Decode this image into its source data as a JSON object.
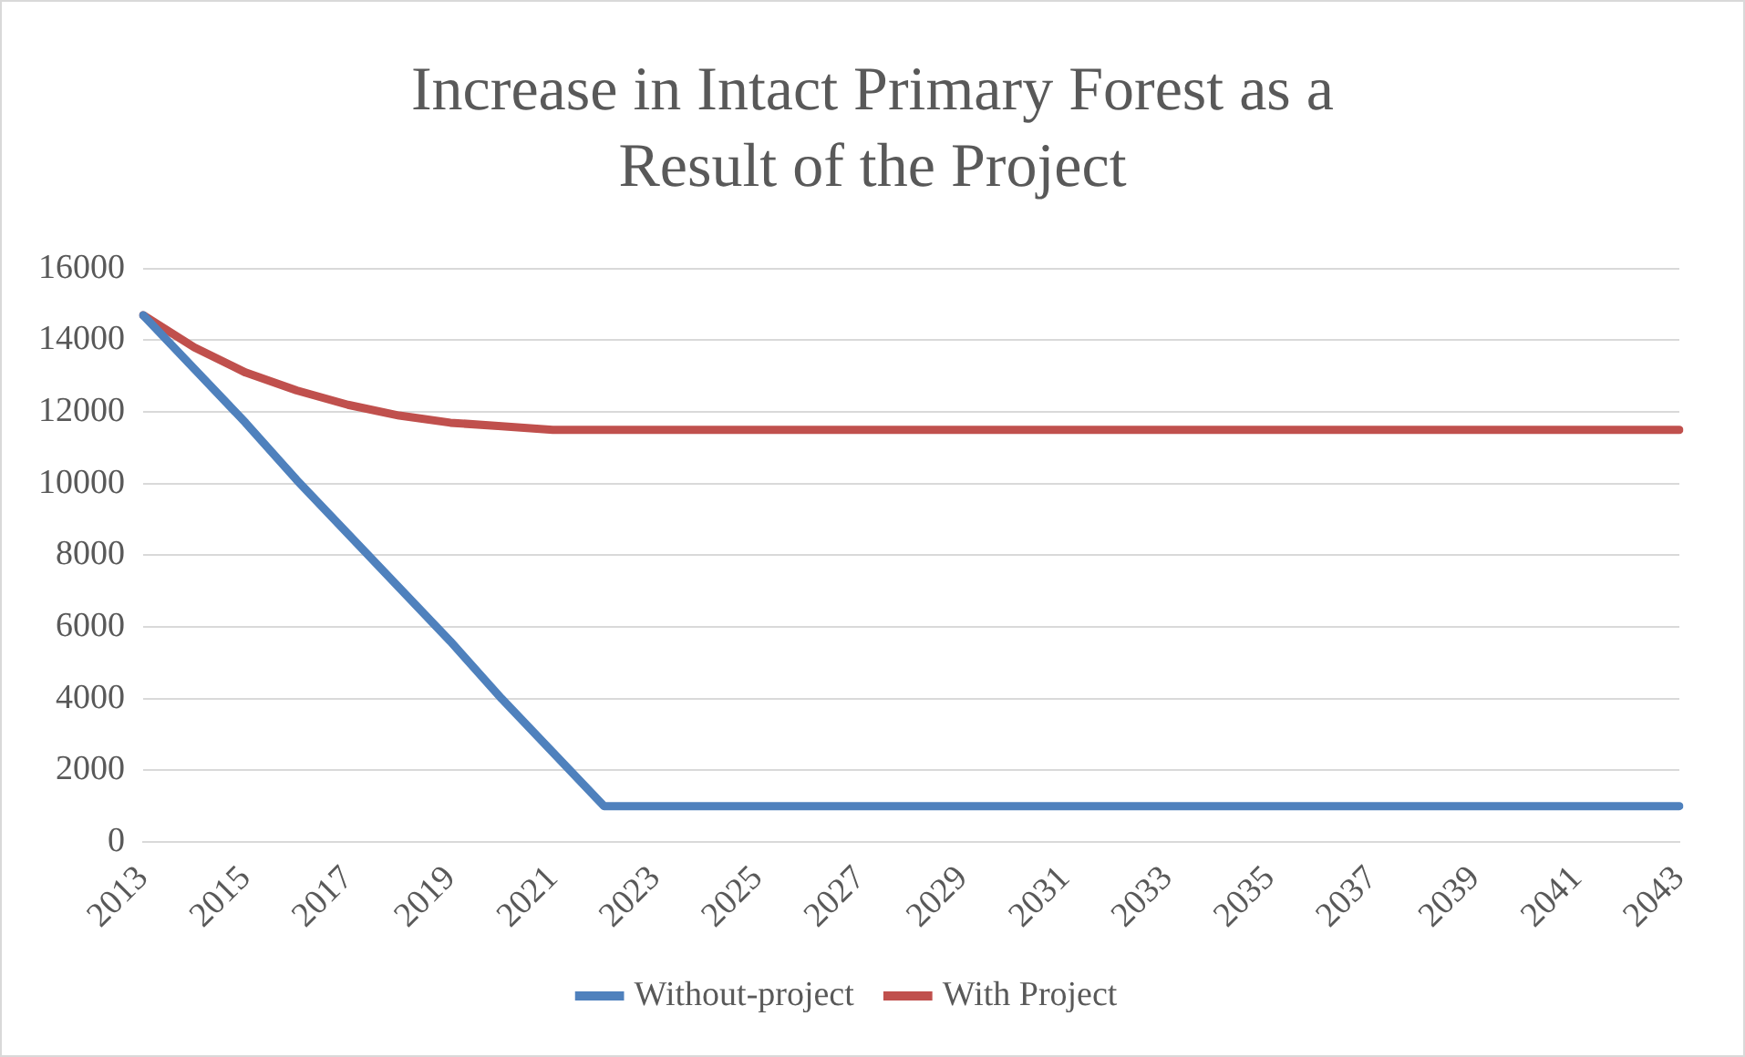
{
  "chart_data": {
    "type": "line",
    "title": "Increase in Intact Primary Forest as a Result of the Project",
    "categories": [
      "2013",
      null,
      "2015",
      null,
      "2017",
      null,
      "2019",
      null,
      "2021",
      null,
      "2023",
      null,
      "2025",
      null,
      "2027",
      null,
      "2029",
      null,
      "2031",
      null,
      "2033",
      null,
      "2035",
      null,
      "2037",
      null,
      "2039",
      null,
      "2041",
      null,
      "2043"
    ],
    "series": [
      {
        "name": "Without-project",
        "color": "#4f81bd",
        "values": [
          14700,
          13200,
          11700,
          10100,
          8600,
          7100,
          5600,
          4000,
          2500,
          1000,
          1000,
          1000,
          1000,
          1000,
          1000,
          1000,
          1000,
          1000,
          1000,
          1000,
          1000,
          1000,
          1000,
          1000,
          1000,
          1000,
          1000,
          1000,
          1000,
          1000,
          1000
        ]
      },
      {
        "name": "With Project",
        "color": "#c0504d",
        "values": [
          14700,
          13800,
          13100,
          12600,
          12200,
          11900,
          11700,
          11600,
          11500,
          11500,
          11500,
          11500,
          11500,
          11500,
          11500,
          11500,
          11500,
          11500,
          11500,
          11500,
          11500,
          11500,
          11500,
          11500,
          11500,
          11500,
          11500,
          11500,
          11500,
          11500,
          11500
        ]
      }
    ],
    "ylim": [
      0,
      16000
    ],
    "yticks": [
      0,
      2000,
      4000,
      6000,
      8000,
      10000,
      12000,
      14000,
      16000
    ],
    "grid": "y",
    "legend": "bottom",
    "marker": "none",
    "line_style": "solid"
  }
}
